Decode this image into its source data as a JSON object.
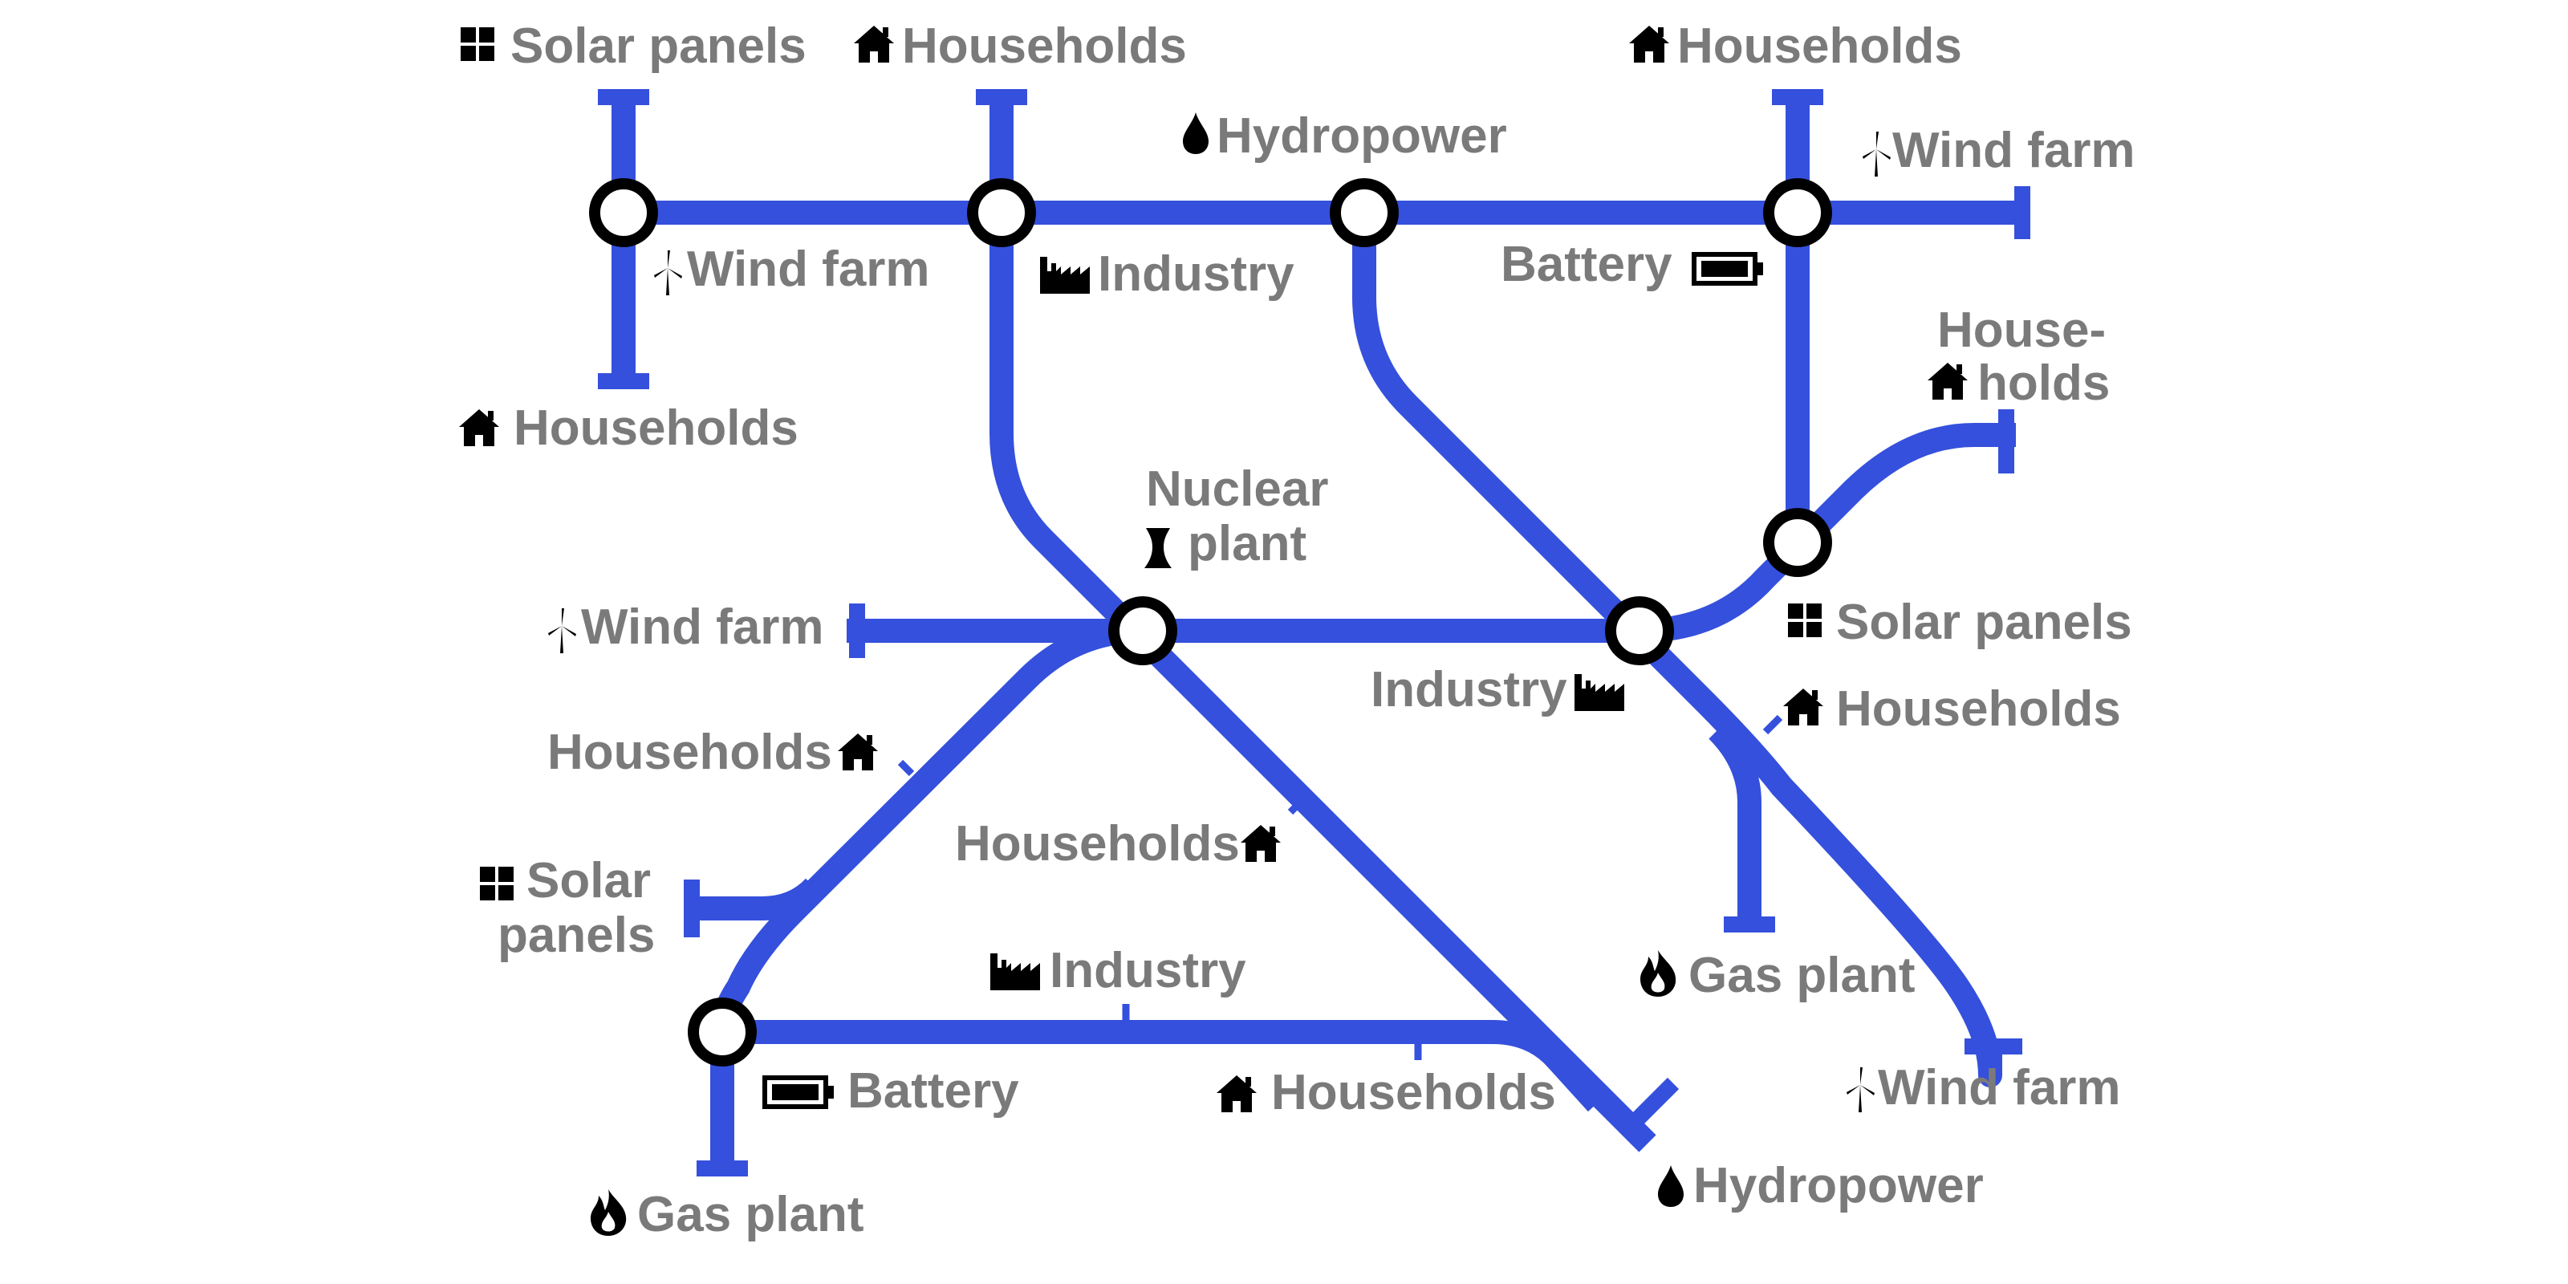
{
  "colors": {
    "line": "#3550dc",
    "node_fill": "#ffffff",
    "node_stroke": "#000000",
    "label": "#7a7a7a",
    "icon": "#000000"
  },
  "labels": {
    "solar_top_left": "Solar panels",
    "households_top_left": "Households",
    "hydropower_top": "Hydropower",
    "households_top_right": "Households",
    "wind_top_right": "Wind farm",
    "wind_left_node": "Wind farm",
    "industry_top": "Industry",
    "battery_top": "Battery",
    "households_right_1": "House-",
    "households_right_2": "holds",
    "households_left_bottom": "Households",
    "nuclear_1": "Nuclear",
    "nuclear_2": "plant",
    "wind_middle_left": "Wind farm",
    "solar_right_middle": "Solar panels",
    "industry_middle": "Industry",
    "households_right_middle": "Households",
    "households_left_middle": "Households",
    "households_center": "Households",
    "solar_left_1": "Solar",
    "solar_left_2": "panels",
    "gas_right": "Gas plant",
    "industry_bottom": "Industry",
    "battery_bottom": "Battery",
    "households_bottom": "Households",
    "wind_bottom_right": "Wind farm",
    "hydropower_bottom": "Hydropower",
    "gas_bottom_left": "Gas plant"
  },
  "icons": [
    "solar-icon",
    "house-icon",
    "drop-icon",
    "wind-turbine-icon",
    "factory-icon",
    "battery-icon",
    "cooling-tower-icon",
    "flame-icon"
  ]
}
